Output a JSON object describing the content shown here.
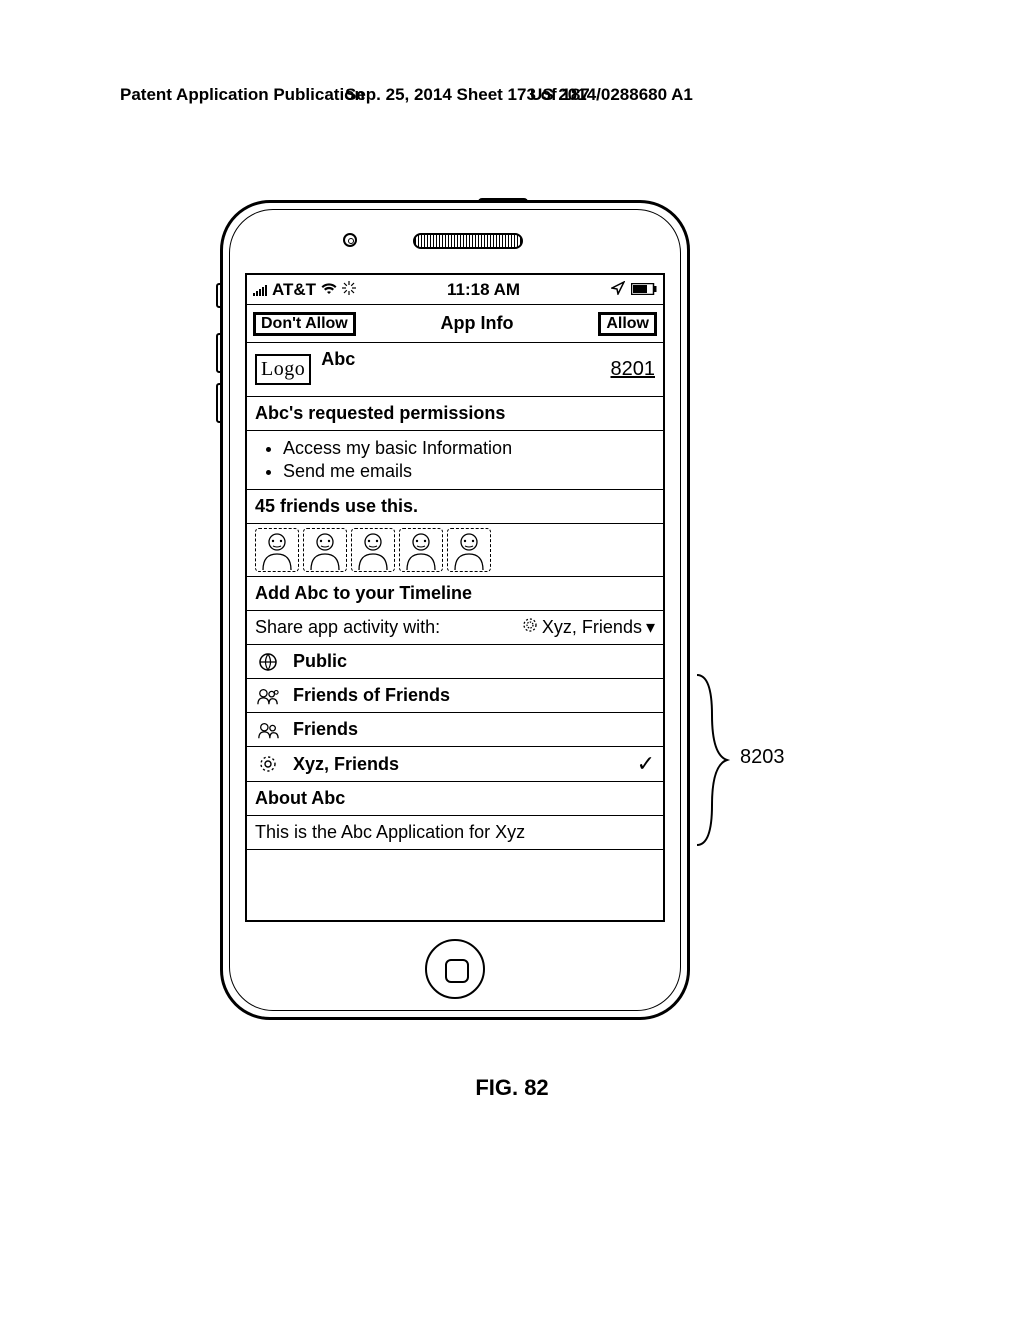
{
  "page_header": {
    "left": "Patent Application Publication",
    "center": "Sep. 25, 2014  Sheet 173 of 187",
    "right": "US 2014/0288680 A1"
  },
  "statusbar": {
    "carrier": "AT&T",
    "time": "11:18 AM"
  },
  "navbar": {
    "left_btn": "Don't Allow",
    "title": "App Info",
    "right_btn": "Allow"
  },
  "app": {
    "logo_text": "Logo",
    "name": "Abc",
    "ref": "8201"
  },
  "permissions": {
    "heading": "Abc's requested permissions",
    "items": [
      "Access my basic Information",
      "Send me emails"
    ]
  },
  "friends": {
    "summary": "45 friends use this.",
    "count": 5
  },
  "timeline_heading": "Add Abc to your Timeline",
  "share": {
    "label": "Share app activity with:",
    "current": "Xyz, Friends"
  },
  "share_options": [
    {
      "icon": "globe",
      "label": "Public",
      "selected": false
    },
    {
      "icon": "friends-of-friends",
      "label": "Friends of Friends",
      "selected": false
    },
    {
      "icon": "friends",
      "label": "Friends",
      "selected": false
    },
    {
      "icon": "gear",
      "label": "Xyz, Friends",
      "selected": true
    }
  ],
  "about": {
    "heading": "About Abc",
    "text": "This is the Abc Application for Xyz"
  },
  "figure_caption": "FIG. 82",
  "callout_ref": "8203"
}
